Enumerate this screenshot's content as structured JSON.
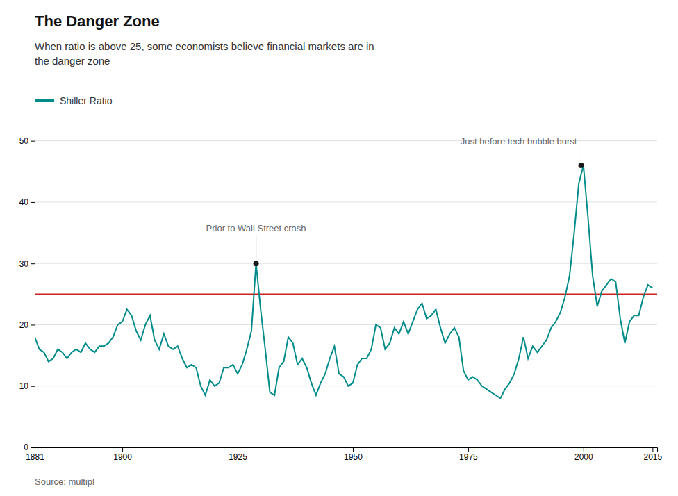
{
  "chart_data": {
    "type": "line",
    "title": "The Danger Zone",
    "subtitle": "When ratio is above 25, some economists believe financial markets are in\nthe danger zone",
    "source": "Source: multipl",
    "x": [
      1881,
      1882,
      1883,
      1884,
      1885,
      1886,
      1887,
      1888,
      1889,
      1890,
      1891,
      1892,
      1893,
      1894,
      1895,
      1896,
      1897,
      1898,
      1899,
      1900,
      1901,
      1902,
      1903,
      1904,
      1905,
      1906,
      1907,
      1908,
      1909,
      1910,
      1911,
      1912,
      1913,
      1914,
      1915,
      1916,
      1917,
      1918,
      1919,
      1920,
      1921,
      1922,
      1923,
      1924,
      1925,
      1926,
      1927,
      1928,
      1929,
      1930,
      1931,
      1932,
      1933,
      1934,
      1935,
      1936,
      1937,
      1938,
      1939,
      1940,
      1941,
      1942,
      1943,
      1944,
      1945,
      1946,
      1947,
      1948,
      1949,
      1950,
      1951,
      1952,
      1953,
      1954,
      1955,
      1956,
      1957,
      1958,
      1959,
      1960,
      1961,
      1962,
      1963,
      1964,
      1965,
      1966,
      1967,
      1968,
      1969,
      1970,
      1971,
      1972,
      1973,
      1974,
      1975,
      1976,
      1977,
      1978,
      1979,
      1980,
      1981,
      1982,
      1983,
      1984,
      1985,
      1986,
      1987,
      1988,
      1989,
      1990,
      1991,
      1992,
      1993,
      1994,
      1995,
      1996,
      1997,
      1998,
      1999,
      2000,
      2001,
      2002,
      2003,
      2004,
      2005,
      2006,
      2007,
      2008,
      2009,
      2010,
      2011,
      2012,
      2013,
      2014,
      2015
    ],
    "series": [
      {
        "name": "Shiller Ratio",
        "color": "#008B8B",
        "values": [
          18.0,
          16.0,
          15.5,
          14.0,
          14.5,
          16.0,
          15.5,
          14.5,
          15.5,
          16.0,
          15.5,
          17.0,
          16.0,
          15.5,
          16.5,
          16.5,
          17.0,
          18.0,
          20.0,
          20.5,
          22.5,
          21.5,
          19.0,
          17.5,
          20.0,
          21.5,
          17.5,
          16.0,
          18.5,
          16.5,
          16.0,
          16.5,
          14.5,
          13.0,
          13.5,
          13.0,
          10.0,
          8.5,
          11.0,
          10.0,
          10.5,
          13.0,
          13.0,
          13.5,
          12.0,
          13.5,
          16.0,
          19.0,
          30.0,
          22.5,
          16.0,
          9.0,
          8.5,
          13.0,
          14.0,
          18.0,
          17.0,
          13.5,
          14.5,
          13.0,
          10.5,
          8.5,
          10.5,
          12.0,
          14.5,
          16.5,
          12.0,
          11.5,
          10.0,
          10.5,
          13.5,
          14.5,
          14.5,
          16.0,
          20.0,
          19.5,
          16.0,
          17.0,
          19.5,
          18.5,
          20.5,
          18.5,
          20.5,
          22.5,
          23.5,
          21.0,
          21.5,
          22.5,
          19.5,
          17.0,
          18.5,
          19.5,
          18.0,
          12.5,
          11.0,
          11.5,
          11.0,
          10.0,
          9.5,
          9.0,
          8.5,
          8.0,
          9.5,
          10.5,
          12.0,
          14.5,
          18.0,
          14.5,
          16.5,
          15.5,
          16.5,
          17.5,
          19.5,
          20.5,
          22.0,
          24.5,
          28.0,
          35.0,
          43.0,
          46.0,
          37.5,
          28.0,
          23.0,
          25.5,
          26.5,
          27.5,
          27.0,
          21.0,
          17.0,
          20.5,
          21.5,
          21.5,
          24.5,
          26.5,
          26.0
        ]
      }
    ],
    "hlines": [
      {
        "y": 25,
        "color": "#cc2222"
      }
    ],
    "annotations": [
      {
        "text": "Prior to Wall Street crash",
        "x": 1929,
        "y": 30.0
      },
      {
        "text": "Just before tech bubble burst",
        "x": 1999.5,
        "y": 46.0
      }
    ],
    "xlim": [
      1881,
      2016
    ],
    "ylim": [
      0,
      52
    ],
    "xticks": [
      1881,
      1900,
      1925,
      1950,
      1975,
      2000,
      2015
    ],
    "yticks": [
      0,
      10,
      20,
      30,
      40,
      50
    ],
    "grid": true,
    "legend": "top-left"
  }
}
